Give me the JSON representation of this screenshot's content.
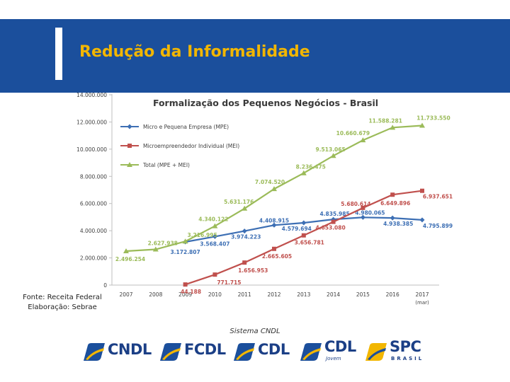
{
  "header": {
    "title": "Redução da Informalidade"
  },
  "chart_data": {
    "type": "line",
    "title": "Formalização dos Pequenos Negócios - Brasil",
    "xlabel": "",
    "ylabel": "",
    "ylim": [
      0,
      14000000
    ],
    "yticks": [
      "0",
      "2.000.000",
      "4.000.000",
      "6.000.000",
      "8.000.000",
      "10.000.000",
      "12.000.000",
      "14.000.000"
    ],
    "categories": [
      "2007",
      "2008",
      "2009",
      "2010",
      "2011",
      "2012",
      "2013",
      "2014",
      "2015",
      "2016",
      "2017"
    ],
    "category_note": "(mar)",
    "legend_position": "top-left",
    "grid": false,
    "series": [
      {
        "name": "Micro e Pequena Empresa (MPE)",
        "color": "#3d6fb4",
        "marker": "diamond",
        "values": [
          null,
          null,
          3172807,
          3568407,
          3974223,
          4408915,
          4579694,
          4835985,
          4980065,
          4938385,
          4795899
        ],
        "labels": [
          null,
          null,
          "3.172.807",
          "3.568.407",
          "3.974.223",
          "4.408.915",
          "4.579.694",
          "4.835.985",
          "4.980.065",
          "4.938.385",
          "4.795.899"
        ]
      },
      {
        "name": "Microempreendedor Individual (MEI)",
        "color": "#c0504d",
        "marker": "square",
        "values": [
          null,
          null,
          44188,
          771715,
          1656953,
          2665605,
          3656781,
          4653080,
          5680614,
          6649896,
          6937651
        ],
        "labels": [
          null,
          null,
          "44.188",
          "771.715",
          "1.656.953",
          "2.665.605",
          "3.656.781",
          "4.653.080",
          "5.680.614",
          "6.649.896",
          "6.937.651"
        ]
      },
      {
        "name": "Total (MPE + MEI)",
        "color": "#9bbb59",
        "marker": "triangle",
        "values": [
          2496254,
          2627938,
          3216995,
          4340122,
          5631176,
          7074520,
          8236475,
          9513065,
          10660679,
          11588281,
          11733550
        ],
        "labels": [
          "2.496.254",
          "2.627.938",
          "3.216.995",
          "4.340.122",
          "5.631.176",
          "7.074.520",
          "8.236.475",
          "9.513.065",
          "10.660.679",
          "11.588.281",
          "11.733.550"
        ]
      }
    ]
  },
  "source": {
    "line1": "Fonte: Receita Federal",
    "line2": "Elaboração: Sebrae"
  },
  "footer": {
    "caption": "Sistema CNDL",
    "logos": [
      {
        "name": "CNDL"
      },
      {
        "name": "FCDL"
      },
      {
        "name": "CDL"
      },
      {
        "name": "CDL",
        "sub": "Jovem"
      },
      {
        "name": "SPC",
        "sub": "BRASIL"
      }
    ]
  }
}
